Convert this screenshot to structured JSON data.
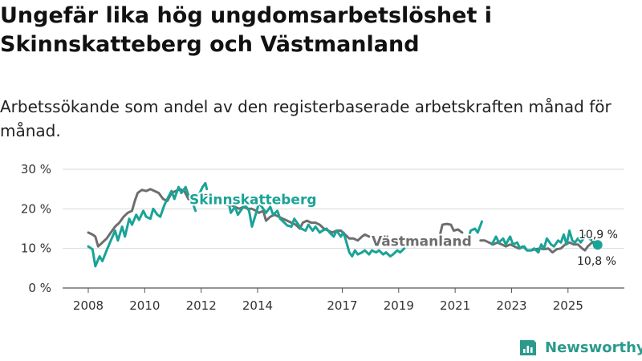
{
  "title": "Ungefär lika hög ungdomsarbetslöshet i Skinnskatteberg och Västmanland",
  "subtitle": "Arbetssökande som andel av den registerbaserade arbetskraften månad för månad.",
  "brand": {
    "name": "Newsworthy"
  },
  "colors": {
    "skinnskatteberg": "#1aa397",
    "vastmanland": "#6e6e6e",
    "grid": "#d9d9d9",
    "axis": "#555555"
  },
  "chart_data": {
    "type": "line",
    "title": "Ungefär lika hög ungdomsarbetslöshet i Skinnskatteberg och Västmanland",
    "xlabel": "",
    "ylabel": "",
    "xlim": [
      2008,
      2026.2
    ],
    "ylim": [
      0,
      30
    ],
    "y_ticks": [
      0,
      10,
      20,
      30
    ],
    "y_tick_labels": [
      "0 %",
      "10 %",
      "20 %",
      "30 %"
    ],
    "x_ticks": [
      2008,
      2010,
      2012,
      2014,
      2017,
      2019,
      2021,
      2023,
      2025
    ],
    "x_tick_labels": [
      "2008",
      "2010",
      "2012",
      "2014",
      "2017",
      "2019",
      "2021",
      "2023",
      "2025"
    ],
    "grid": true,
    "series": [
      {
        "name": "Skinnskatteberg",
        "label": "Skinnskatteberg",
        "end_label": "10,9 %",
        "color": "#1aa397",
        "points": [
          [
            2008.0,
            10.5
          ],
          [
            2008.15,
            9.8
          ],
          [
            2008.25,
            5.5
          ],
          [
            2008.4,
            8.0
          ],
          [
            2008.5,
            6.8
          ],
          [
            2008.65,
            9.5
          ],
          [
            2008.8,
            12.0
          ],
          [
            2008.95,
            14.5
          ],
          [
            2009.05,
            12.0
          ],
          [
            2009.2,
            15.5
          ],
          [
            2009.3,
            13.0
          ],
          [
            2009.45,
            17.5
          ],
          [
            2009.55,
            16.0
          ],
          [
            2009.7,
            18.5
          ],
          [
            2009.8,
            17.2
          ],
          [
            2009.95,
            19.5
          ],
          [
            2010.05,
            18.0
          ],
          [
            2010.2,
            17.5
          ],
          [
            2010.3,
            20.0
          ],
          [
            2010.45,
            18.5
          ],
          [
            2010.55,
            18.0
          ],
          [
            2010.7,
            21.0
          ],
          [
            2010.8,
            22.5
          ],
          [
            2010.95,
            24.5
          ],
          [
            2011.05,
            22.5
          ],
          [
            2011.2,
            25.5
          ],
          [
            2011.3,
            24.0
          ],
          [
            2011.45,
            25.5
          ],
          [
            2011.55,
            23.5
          ],
          [
            2011.7,
            21.5
          ],
          [
            2011.8,
            19.5
          ],
          null,
          [
            2011.8,
            22.0
          ],
          [
            2011.95,
            24.0
          ],
          [
            2012.05,
            25.5
          ],
          [
            2012.15,
            26.5
          ],
          [
            2012.2,
            25.0
          ],
          null,
          [
            2012.8,
            21.5
          ],
          [
            2012.95,
            22.5
          ],
          [
            2013.05,
            19.0
          ],
          [
            2013.2,
            20.5
          ],
          [
            2013.3,
            18.5
          ],
          [
            2013.45,
            20.0
          ],
          [
            2013.55,
            21.0
          ],
          [
            2013.7,
            19.5
          ],
          [
            2013.8,
            15.5
          ],
          [
            2013.95,
            19.0
          ],
          [
            2014.05,
            21.5
          ],
          [
            2014.2,
            20.0
          ],
          [
            2014.3,
            19.0
          ],
          [
            2014.45,
            20.5
          ],
          [
            2014.55,
            18.5
          ],
          [
            2014.7,
            19.5
          ],
          [
            2014.8,
            17.5
          ],
          [
            2014.95,
            16.5
          ],
          [
            2015.05,
            15.8
          ],
          [
            2015.2,
            15.5
          ],
          [
            2015.3,
            17.5
          ],
          [
            2015.45,
            16.0
          ],
          [
            2015.55,
            15.0
          ],
          [
            2015.7,
            14.5
          ],
          [
            2015.8,
            16.0
          ],
          [
            2015.95,
            14.5
          ],
          [
            2016.05,
            15.5
          ],
          [
            2016.2,
            14.0
          ],
          [
            2016.3,
            14.5
          ],
          [
            2016.45,
            15.0
          ],
          [
            2016.55,
            14.0
          ],
          [
            2016.7,
            13.0
          ],
          [
            2016.8,
            14.5
          ],
          [
            2016.95,
            13.0
          ],
          [
            2017.05,
            14.0
          ],
          [
            2017.15,
            11.5
          ],
          [
            2017.25,
            9.0
          ],
          [
            2017.35,
            8.0
          ],
          [
            2017.45,
            9.5
          ],
          [
            2017.55,
            8.5
          ],
          [
            2017.7,
            9.0
          ],
          [
            2017.8,
            9.5
          ],
          [
            2017.95,
            8.5
          ],
          [
            2018.05,
            9.5
          ],
          [
            2018.2,
            9.0
          ],
          [
            2018.3,
            9.5
          ],
          [
            2018.45,
            8.5
          ],
          [
            2018.55,
            9.0
          ],
          [
            2018.7,
            8.0
          ],
          [
            2018.8,
            8.5
          ],
          [
            2018.95,
            9.5
          ],
          [
            2019.05,
            9.0
          ],
          [
            2019.2,
            10.0
          ],
          null,
          [
            2019.3,
            10.5
          ],
          [
            2019.45,
            11.5
          ],
          [
            2019.55,
            10.5
          ],
          null,
          [
            2021.3,
            11.0
          ],
          [
            2021.45,
            12.0
          ],
          [
            2021.55,
            14.5
          ],
          [
            2021.7,
            15.0
          ],
          [
            2021.8,
            14.0
          ],
          [
            2021.95,
            16.8
          ],
          null,
          [
            2022.3,
            11.0
          ],
          [
            2022.45,
            13.0
          ],
          [
            2022.55,
            11.5
          ],
          [
            2022.7,
            12.5
          ],
          [
            2022.8,
            11.0
          ],
          [
            2022.95,
            13.0
          ],
          [
            2023.05,
            11.0
          ],
          [
            2023.2,
            11.5
          ],
          [
            2023.3,
            10.0
          ],
          [
            2023.45,
            10.5
          ],
          [
            2023.55,
            9.5
          ],
          [
            2023.7,
            9.5
          ],
          [
            2023.8,
            10.0
          ],
          [
            2023.95,
            9.0
          ],
          [
            2024.05,
            11.0
          ],
          [
            2024.15,
            10.0
          ],
          [
            2024.25,
            12.5
          ],
          [
            2024.4,
            11.0
          ],
          [
            2024.5,
            10.5
          ],
          [
            2024.65,
            12.0
          ],
          [
            2024.75,
            11.5
          ],
          [
            2024.85,
            13.5
          ],
          [
            2024.95,
            11.0
          ],
          [
            2025.05,
            14.5
          ],
          [
            2025.15,
            12.0
          ],
          [
            2025.25,
            11.5
          ],
          [
            2025.35,
            12.5
          ],
          [
            2025.45,
            11.5
          ],
          [
            2025.55,
            12.5
          ],
          [
            2025.65,
            13.5
          ],
          [
            2025.75,
            12.5
          ],
          [
            2025.85,
            12.0
          ],
          [
            2025.95,
            11.5
          ],
          [
            2026.05,
            10.9
          ]
        ]
      },
      {
        "name": "Västmanland",
        "label": "Västmanland",
        "end_label": "10,8 %",
        "color": "#6e6e6e",
        "points": [
          [
            2008.0,
            14.0
          ],
          [
            2008.15,
            13.5
          ],
          [
            2008.25,
            13.0
          ],
          [
            2008.35,
            10.5
          ],
          [
            2008.5,
            11.5
          ],
          [
            2008.65,
            12.5
          ],
          [
            2008.8,
            14.0
          ],
          [
            2008.95,
            15.5
          ],
          [
            2009.1,
            16.5
          ],
          [
            2009.25,
            18.0
          ],
          [
            2009.4,
            19.0
          ],
          [
            2009.55,
            19.5
          ],
          [
            2009.65,
            22.0
          ],
          [
            2009.75,
            24.0
          ],
          [
            2009.9,
            24.8
          ],
          [
            2010.05,
            24.5
          ],
          [
            2010.2,
            25.0
          ],
          [
            2010.35,
            24.5
          ],
          [
            2010.5,
            24.0
          ],
          [
            2010.65,
            22.5
          ],
          [
            2010.8,
            22.0
          ],
          [
            2010.95,
            24.0
          ],
          [
            2011.1,
            24.5
          ],
          [
            2011.25,
            25.0
          ],
          [
            2011.4,
            24.5
          ],
          [
            2011.55,
            22.5
          ],
          [
            2011.7,
            22.0
          ],
          [
            2011.85,
            22.5
          ],
          [
            2012.0,
            23.0
          ],
          [
            2012.15,
            23.5
          ],
          [
            2012.3,
            23.0
          ],
          [
            2012.45,
            22.5
          ],
          [
            2012.6,
            22.0
          ],
          [
            2012.75,
            21.5
          ],
          [
            2012.9,
            21.0
          ],
          [
            2013.05,
            21.0
          ],
          [
            2013.2,
            20.5
          ],
          [
            2013.35,
            20.0
          ],
          [
            2013.5,
            20.5
          ],
          [
            2013.65,
            20.0
          ],
          [
            2013.8,
            20.0
          ],
          [
            2013.95,
            19.5
          ],
          [
            2014.05,
            19.0
          ],
          [
            2014.2,
            19.5
          ],
          [
            2014.3,
            17.0
          ],
          [
            2014.45,
            18.0
          ],
          [
            2014.6,
            18.5
          ],
          [
            2014.75,
            18.0
          ],
          [
            2014.9,
            17.5
          ],
          [
            2015.05,
            17.0
          ],
          [
            2015.2,
            16.5
          ],
          [
            2015.35,
            16.0
          ],
          [
            2015.5,
            15.0
          ],
          [
            2015.6,
            16.5
          ],
          [
            2015.75,
            17.0
          ],
          [
            2015.9,
            16.5
          ],
          [
            2016.05,
            16.5
          ],
          [
            2016.2,
            16.0
          ],
          [
            2016.35,
            15.0
          ],
          [
            2016.5,
            14.5
          ],
          [
            2016.65,
            14.0
          ],
          [
            2016.8,
            14.5
          ],
          [
            2016.95,
            14.5
          ],
          [
            2017.1,
            13.5
          ],
          [
            2017.25,
            12.5
          ],
          [
            2017.4,
            12.5
          ],
          [
            2017.55,
            12.0
          ],
          [
            2017.7,
            13.0
          ],
          [
            2017.8,
            13.5
          ],
          [
            2017.95,
            13.0
          ],
          null,
          [
            2020.45,
            13.0
          ],
          [
            2020.55,
            16.0
          ],
          [
            2020.7,
            16.2
          ],
          [
            2020.85,
            16.0
          ],
          [
            2020.95,
            14.5
          ],
          [
            2021.1,
            14.8
          ],
          [
            2021.25,
            14.0
          ],
          null,
          [
            2021.9,
            12.0
          ],
          [
            2022.05,
            12.0
          ],
          [
            2022.2,
            11.5
          ],
          [
            2022.35,
            11.0
          ],
          [
            2022.5,
            11.5
          ],
          [
            2022.65,
            11.0
          ],
          [
            2022.8,
            10.5
          ],
          [
            2022.95,
            11.0
          ],
          [
            2023.1,
            10.5
          ],
          [
            2023.25,
            10.0
          ],
          [
            2023.4,
            10.5
          ],
          [
            2023.55,
            9.5
          ],
          [
            2023.7,
            9.5
          ],
          [
            2023.85,
            9.8
          ],
          [
            2024.0,
            10.0
          ],
          [
            2024.15,
            9.8
          ],
          [
            2024.3,
            10.0
          ],
          [
            2024.45,
            9.0
          ],
          [
            2024.6,
            9.8
          ],
          [
            2024.75,
            10.0
          ],
          [
            2024.9,
            11.0
          ],
          [
            2025.05,
            11.5
          ],
          [
            2025.2,
            11.0
          ],
          [
            2025.35,
            11.0
          ],
          [
            2025.5,
            10.0
          ],
          [
            2025.6,
            9.5
          ],
          [
            2025.7,
            10.5
          ],
          [
            2025.85,
            11.5
          ],
          [
            2025.95,
            11.2
          ],
          [
            2026.05,
            10.8
          ]
        ]
      }
    ]
  }
}
